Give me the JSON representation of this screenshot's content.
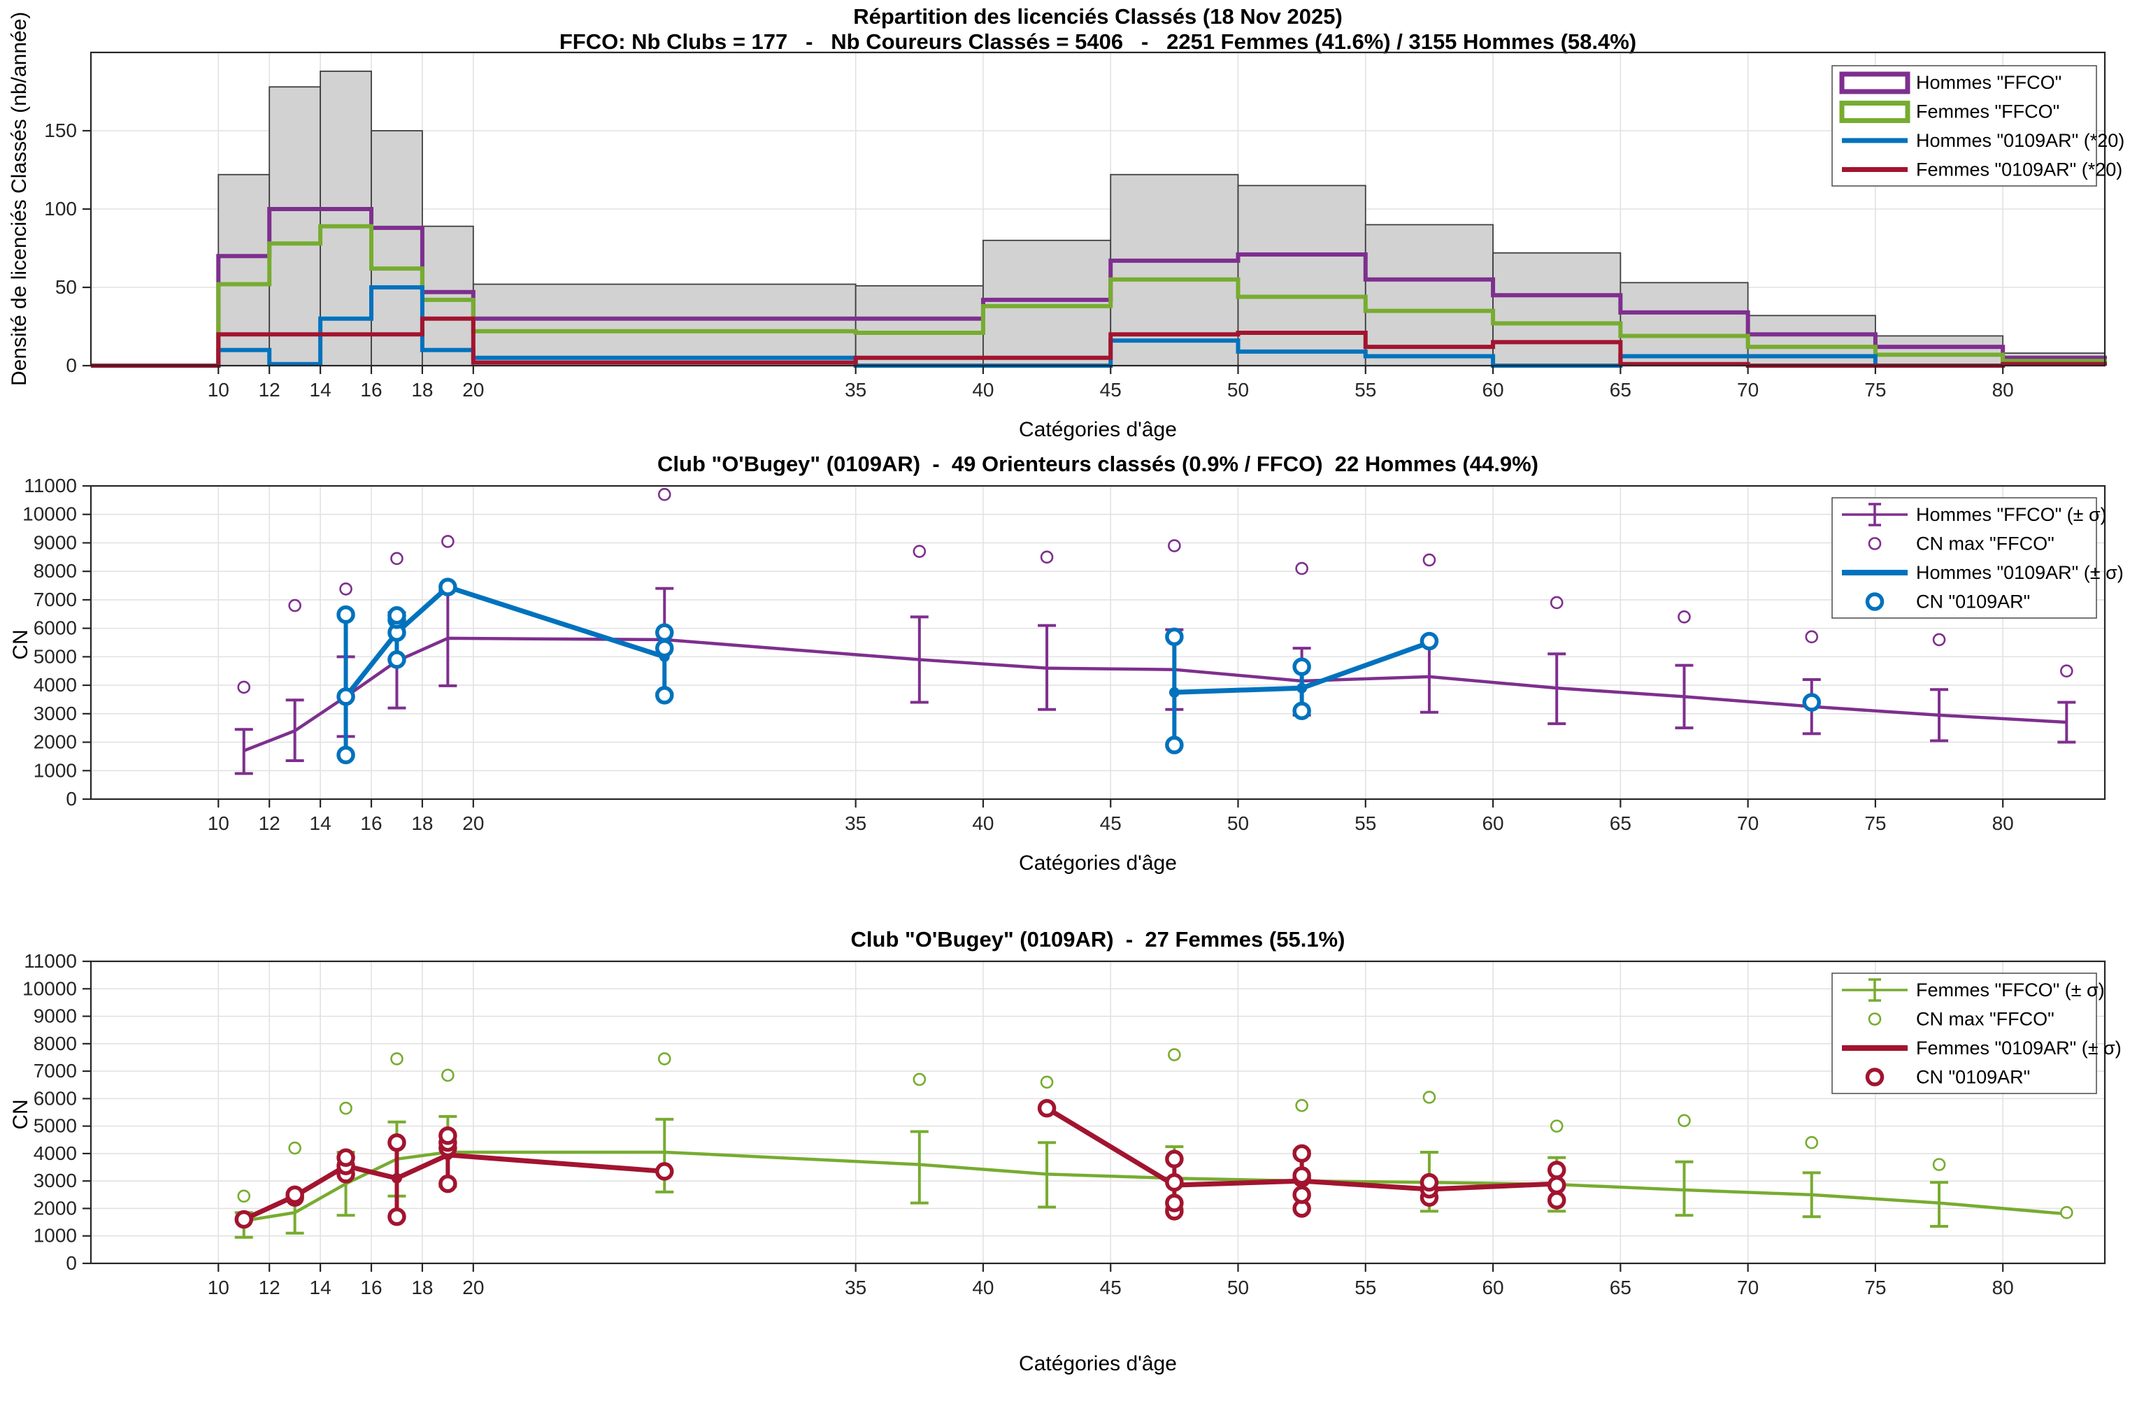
{
  "figure": {
    "top": {
      "title": "Répartition des licenciés Classés (18 Nov 2025)",
      "subtitle": "FFCO: Nb Clubs = 177   -   Nb Coureurs Classés = 5406   -   2251 Femmes (41.6%) / 3155 Hommes (58.4%)",
      "xlabel": "Catégories d'âge",
      "ylabel": "Densité de licenciés Classés (nb/année)"
    },
    "middle": {
      "title": "Club \"O'Bugey\" (0109AR)  -  49 Orienteurs classés (0.9% / FFCO)  22 Hommes (44.9%)",
      "xlabel": "Catégories d'âge",
      "ylabel": "CN"
    },
    "bottom": {
      "title": "Club \"O'Bugey\" (0109AR)  -  27 Femmes (55.1%)",
      "xlabel": "Catégories d'âge",
      "ylabel": "CN"
    }
  },
  "colors": {
    "purple": "#7E2F8E",
    "green": "#77AC30",
    "blue": "#0072BD",
    "red": "#A2142F",
    "bar_fill": "#d2d2d2",
    "bar_edge": "#3f3f3f",
    "grid": "#e2e2e2",
    "spine": "#262626"
  },
  "chart_data": [
    {
      "type": "bar",
      "title": "Répartition des licenciés Classés (18 Nov 2025)",
      "xlabel": "Catégories d'âge",
      "ylabel": "Densité de licenciés Classés (nb/année)",
      "xlim": [
        5,
        84
      ],
      "ylim": [
        0,
        200
      ],
      "xticks": [
        10,
        12,
        14,
        16,
        18,
        20,
        35,
        40,
        45,
        50,
        55,
        60,
        65,
        70,
        75,
        80
      ],
      "yticks": [
        0,
        50,
        100,
        150
      ],
      "bin_edges": [
        10,
        12,
        14,
        16,
        18,
        20,
        35,
        40,
        45,
        50,
        55,
        60,
        65,
        70,
        75,
        80,
        84
      ],
      "series": [
        {
          "name": "Total FFCO",
          "style": "bar",
          "values": [
            122,
            178,
            188,
            150,
            89,
            52,
            51,
            80,
            122,
            115,
            90,
            72,
            53,
            32,
            19,
            8
          ]
        },
        {
          "name": "Hommes \"FFCO\"",
          "style": "step",
          "color": "#7E2F8E",
          "values": [
            70,
            100,
            100,
            88,
            47,
            30,
            30,
            42,
            67,
            71,
            55,
            45,
            34,
            20,
            12,
            5
          ]
        },
        {
          "name": "Femmes \"FFCO\"",
          "style": "step",
          "color": "#77AC30",
          "values": [
            52,
            78,
            89,
            62,
            42,
            22,
            21,
            38,
            55,
            44,
            35,
            27,
            19,
            12,
            7,
            3
          ]
        },
        {
          "name": "Hommes \"0109AR\" (*20)",
          "style": "step",
          "color": "#0072BD",
          "values": [
            10,
            1,
            30,
            50,
            10,
            5,
            0,
            0,
            16,
            9,
            6,
            0,
            6,
            6,
            0,
            1
          ]
        },
        {
          "name": "Femmes \"0109AR\" (*20)",
          "style": "step",
          "color": "#A2142F",
          "values": [
            20,
            20,
            20,
            20,
            30,
            2,
            5,
            5,
            20,
            21,
            12,
            15,
            1,
            0,
            0,
            1
          ]
        }
      ],
      "legend": [
        {
          "label": "Hommes \"FFCO\"",
          "glyph": "box",
          "color": "#7E2F8E"
        },
        {
          "label": "Femmes \"FFCO\"",
          "glyph": "box",
          "color": "#77AC30"
        },
        {
          "label": "Hommes \"0109AR\" (*20)",
          "glyph": "line",
          "color": "#0072BD"
        },
        {
          "label": "Femmes \"0109AR\" (*20)",
          "glyph": "line",
          "color": "#A2142F"
        }
      ]
    },
    {
      "type": "line",
      "title": "Club \"O'Bugey\" (0109AR)  -  49 Orienteurs classés (0.9% / FFCO)  22 Hommes (44.9%)",
      "xlabel": "Catégories d'âge",
      "ylabel": "CN",
      "xlim": [
        5,
        84
      ],
      "ylim": [
        0,
        11000
      ],
      "xticks": [
        10,
        12,
        14,
        16,
        18,
        20,
        35,
        40,
        45,
        50,
        55,
        60,
        65,
        70,
        75,
        80
      ],
      "yticks": [
        0,
        1000,
        2000,
        3000,
        4000,
        5000,
        6000,
        7000,
        8000,
        9000,
        10000,
        11000
      ],
      "x": [
        11,
        13,
        15,
        17,
        19,
        27.5,
        37.5,
        42.5,
        47.5,
        52.5,
        57.5,
        62.5,
        67.5,
        72.5,
        77.5,
        82.5
      ],
      "ffco_color": "#7E2F8E",
      "club_color": "#0072BD",
      "ffco_mean": [
        1700,
        2400,
        3600,
        4850,
        5650,
        5600,
        4900,
        4600,
        4550,
        4150,
        4300,
        3900,
        3600,
        3250,
        2950,
        2700
      ],
      "ffco_lo": [
        900,
        1350,
        2200,
        3200,
        3980,
        3700,
        3400,
        3150,
        3150,
        2950,
        3050,
        2650,
        2500,
        2300,
        2050,
        2000
      ],
      "ffco_hi": [
        2450,
        3480,
        5000,
        6550,
        7330,
        7400,
        6400,
        6100,
        5950,
        5300,
        5550,
        5100,
        4700,
        4200,
        3850,
        3400
      ],
      "cn_max": [
        3930,
        6800,
        7380,
        8450,
        9050,
        10700,
        8700,
        8500,
        8900,
        8100,
        8400,
        6900,
        6400,
        5700,
        5600,
        4500
      ],
      "club_segments": [
        {
          "x": [
            15,
            17,
            19,
            27.5
          ],
          "y": [
            3600,
            5850,
            7450,
            5000
          ]
        },
        {
          "x": [
            47.5,
            52.5,
            57.5
          ],
          "y": [
            3750,
            3900,
            5500
          ]
        }
      ],
      "club_err": [
        {
          "x": 15,
          "lo": 1550,
          "hi": 6480
        },
        {
          "x": 17,
          "lo": 4900,
          "hi": 6400
        },
        {
          "x": 27.5,
          "lo": 3600,
          "hi": 5850
        },
        {
          "x": 47.5,
          "lo": 1900,
          "hi": 5700
        },
        {
          "x": 52.5,
          "lo": 3100,
          "hi": 4650
        }
      ],
      "club_markers": [
        [
          15,
          1550
        ],
        [
          15,
          3600
        ],
        [
          15,
          6480
        ],
        [
          17,
          4900
        ],
        [
          17,
          5850
        ],
        [
          17,
          6300
        ],
        [
          17,
          6450
        ],
        [
          19,
          7450
        ],
        [
          27.5,
          3650
        ],
        [
          27.5,
          5300
        ],
        [
          27.5,
          5850
        ],
        [
          47.5,
          1900
        ],
        [
          47.5,
          5700
        ],
        [
          52.5,
          3100
        ],
        [
          52.5,
          4650
        ],
        [
          57.5,
          5550
        ],
        [
          72.5,
          3400
        ]
      ],
      "legend": [
        {
          "label": "Hommes \"FFCO\" (± σ)",
          "glyph": "errorbar",
          "color": "#7E2F8E"
        },
        {
          "label": "CN max \"FFCO\"",
          "glyph": "circle-small",
          "color": "#7E2F8E"
        },
        {
          "label": "Hommes \"0109AR\" (± σ)",
          "glyph": "line-thick",
          "color": "#0072BD"
        },
        {
          "label": "CN \"0109AR\"",
          "glyph": "circle-thick",
          "color": "#0072BD"
        }
      ]
    },
    {
      "type": "line",
      "title": "Club \"O'Bugey\" (0109AR)  -  27 Femmes (55.1%)",
      "xlabel": "Catégories d'âge",
      "ylabel": "CN",
      "xlim": [
        5,
        84
      ],
      "ylim": [
        0,
        11000
      ],
      "xticks": [
        10,
        12,
        14,
        16,
        18,
        20,
        35,
        40,
        45,
        50,
        55,
        60,
        65,
        70,
        75,
        80
      ],
      "yticks": [
        0,
        1000,
        2000,
        3000,
        4000,
        5000,
        6000,
        7000,
        8000,
        9000,
        10000,
        11000
      ],
      "x": [
        11,
        13,
        15,
        17,
        19,
        27.5,
        37.5,
        42.5,
        47.5,
        52.5,
        57.5,
        62.5,
        67.5,
        72.5,
        77.5,
        82.5
      ],
      "ffco_color": "#77AC30",
      "club_color": "#A2142F",
      "ffco_mean": [
        1550,
        1850,
        2900,
        3800,
        4050,
        4050,
        3600,
        3250,
        3100,
        3000,
        2950,
        2875,
        2675,
        2500,
        2200,
        1800
      ],
      "ffco_lo": [
        950,
        1100,
        1750,
        2450,
        2800,
        2600,
        2200,
        2050,
        2000,
        1950,
        1900,
        1900,
        1750,
        1700,
        1350,
        1800
      ],
      "ffco_hi": [
        1850,
        2550,
        4050,
        5150,
        5350,
        5250,
        4800,
        4400,
        4250,
        4100,
        4050,
        3850,
        3700,
        3300,
        2950,
        1800
      ],
      "cn_max": [
        2450,
        4200,
        5650,
        7450,
        6850,
        7450,
        6700,
        6600,
        7600,
        5750,
        6050,
        5000,
        5200,
        4400,
        3600,
        1850
      ],
      "club_segments": [
        {
          "x": [
            11,
            13,
            15,
            17,
            19,
            27.5
          ],
          "y": [
            1600,
            2450,
            3550,
            3100,
            3950,
            3350
          ]
        },
        {
          "x": [
            42.5,
            47.5,
            52.5,
            57.5,
            62.5
          ],
          "y": [
            5650,
            2850,
            3000,
            2700,
            2900
          ]
        }
      ],
      "club_err": [
        {
          "x": 15,
          "lo": 3250,
          "hi": 3850
        },
        {
          "x": 17,
          "lo": 1700,
          "hi": 4400
        },
        {
          "x": 19,
          "lo": 2900,
          "hi": 4650
        },
        {
          "x": 47.5,
          "lo": 1900,
          "hi": 3800
        },
        {
          "x": 52.5,
          "lo": 2000,
          "hi": 4000
        },
        {
          "x": 57.5,
          "lo": 2400,
          "hi": 2950
        },
        {
          "x": 62.5,
          "lo": 2300,
          "hi": 3400
        }
      ],
      "club_markers": [
        [
          11,
          1600
        ],
        [
          13,
          2400
        ],
        [
          13,
          2500
        ],
        [
          15,
          3250
        ],
        [
          15,
          3550
        ],
        [
          15,
          3850
        ],
        [
          17,
          1700
        ],
        [
          17,
          4400
        ],
        [
          19,
          2900
        ],
        [
          19,
          4200
        ],
        [
          19,
          4400
        ],
        [
          19,
          4650
        ],
        [
          27.5,
          3350
        ],
        [
          42.5,
          5650
        ],
        [
          47.5,
          1900
        ],
        [
          47.5,
          2200
        ],
        [
          47.5,
          2950
        ],
        [
          47.5,
          3800
        ],
        [
          52.5,
          2000
        ],
        [
          52.5,
          2500
        ],
        [
          52.5,
          3100
        ],
        [
          52.5,
          3200
        ],
        [
          52.5,
          4000
        ],
        [
          57.5,
          2400
        ],
        [
          57.5,
          2700
        ],
        [
          57.5,
          2950
        ],
        [
          62.5,
          2300
        ],
        [
          62.5,
          2850
        ],
        [
          62.5,
          3400
        ]
      ],
      "legend": [
        {
          "label": "Femmes \"FFCO\" (± σ)",
          "glyph": "errorbar",
          "color": "#77AC30"
        },
        {
          "label": "CN max \"FFCO\"",
          "glyph": "circle-small",
          "color": "#77AC30"
        },
        {
          "label": "Femmes \"0109AR\" (± σ)",
          "glyph": "line-thick",
          "color": "#A2142F"
        },
        {
          "label": "CN \"0109AR\"",
          "glyph": "circle-thick",
          "color": "#A2142F"
        }
      ]
    }
  ]
}
